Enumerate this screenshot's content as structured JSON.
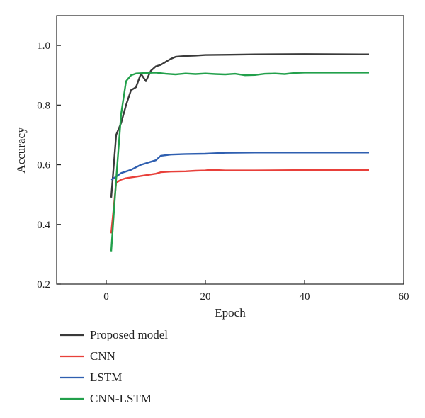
{
  "chart_data": {
    "type": "line",
    "xlabel": "Epoch",
    "ylabel": "Accuracy",
    "xlim": [
      -10,
      60
    ],
    "ylim": [
      0.2,
      1.1
    ],
    "xticks": [
      0,
      20,
      40,
      60
    ],
    "yticks": [
      0.2,
      0.4,
      0.6,
      0.8,
      1.0
    ],
    "xtick_labels": [
      "0",
      "20",
      "40",
      "60"
    ],
    "ytick_labels": [
      "0.2",
      "0.4",
      "0.6",
      "0.8",
      "1.0"
    ],
    "grid": false,
    "legend_placement": "below",
    "series": [
      {
        "name": "Proposed model",
        "color": "#3a3a3a",
        "points": [
          [
            1,
            0.49
          ],
          [
            2,
            0.7
          ],
          [
            3,
            0.74
          ],
          [
            4,
            0.8
          ],
          [
            5,
            0.85
          ],
          [
            6,
            0.86
          ],
          [
            7,
            0.905
          ],
          [
            8,
            0.88
          ],
          [
            9,
            0.915
          ],
          [
            10,
            0.93
          ],
          [
            11,
            0.935
          ],
          [
            12,
            0.945
          ],
          [
            13,
            0.955
          ],
          [
            14,
            0.962
          ],
          [
            16,
            0.965
          ],
          [
            18,
            0.966
          ],
          [
            20,
            0.968
          ],
          [
            25,
            0.969
          ],
          [
            30,
            0.97
          ],
          [
            40,
            0.971
          ],
          [
            53,
            0.97
          ]
        ]
      },
      {
        "name": "CNN",
        "color": "#e8403a",
        "points": [
          [
            1,
            0.37
          ],
          [
            2,
            0.54
          ],
          [
            3,
            0.55
          ],
          [
            4,
            0.555
          ],
          [
            6,
            0.56
          ],
          [
            8,
            0.565
          ],
          [
            10,
            0.57
          ],
          [
            11,
            0.575
          ],
          [
            13,
            0.577
          ],
          [
            16,
            0.578
          ],
          [
            18,
            0.58
          ],
          [
            20,
            0.581
          ],
          [
            21,
            0.583
          ],
          [
            24,
            0.581
          ],
          [
            30,
            0.581
          ],
          [
            40,
            0.582
          ],
          [
            53,
            0.582
          ]
        ]
      },
      {
        "name": "LSTM",
        "color": "#2f5fb0",
        "points": [
          [
            1,
            0.55
          ],
          [
            2,
            0.56
          ],
          [
            3,
            0.572
          ],
          [
            5,
            0.583
          ],
          [
            7,
            0.6
          ],
          [
            9,
            0.61
          ],
          [
            10,
            0.615
          ],
          [
            11,
            0.63
          ],
          [
            13,
            0.634
          ],
          [
            16,
            0.636
          ],
          [
            20,
            0.637
          ],
          [
            24,
            0.64
          ],
          [
            30,
            0.641
          ],
          [
            40,
            0.641
          ],
          [
            53,
            0.641
          ]
        ]
      },
      {
        "name": "CNN-LSTM",
        "color": "#22a04b",
        "points": [
          [
            1,
            0.31
          ],
          [
            2,
            0.55
          ],
          [
            3,
            0.77
          ],
          [
            4,
            0.88
          ],
          [
            5,
            0.9
          ],
          [
            6,
            0.906
          ],
          [
            8,
            0.908
          ],
          [
            10,
            0.909
          ],
          [
            12,
            0.905
          ],
          [
            14,
            0.903
          ],
          [
            16,
            0.906
          ],
          [
            18,
            0.904
          ],
          [
            20,
            0.906
          ],
          [
            22,
            0.904
          ],
          [
            24,
            0.903
          ],
          [
            26,
            0.905
          ],
          [
            28,
            0.9
          ],
          [
            30,
            0.901
          ],
          [
            32,
            0.905
          ],
          [
            34,
            0.906
          ],
          [
            36,
            0.904
          ],
          [
            38,
            0.908
          ],
          [
            40,
            0.909
          ],
          [
            53,
            0.909
          ]
        ]
      }
    ]
  }
}
